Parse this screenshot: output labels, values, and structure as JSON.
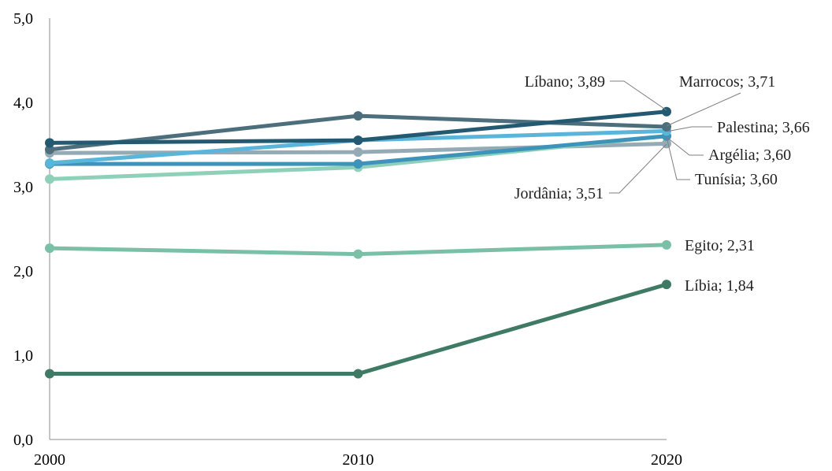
{
  "chart_data": {
    "type": "line",
    "x": [
      "2000",
      "2010",
      "2020"
    ],
    "y_ticks": [
      "0,0",
      "1,0",
      "2,0",
      "3,0",
      "4,0",
      "5,0"
    ],
    "ylim": [
      0,
      5
    ],
    "grid": false,
    "series": [
      {
        "key": "libia",
        "values": [
          0.78,
          0.78,
          1.84
        ],
        "color": "#3e7a64",
        "label": "Líbia; 1,84"
      },
      {
        "key": "egito",
        "values": [
          2.27,
          2.2,
          2.31
        ],
        "color": "#79c0a7",
        "label": "Egito; 2,31"
      },
      {
        "key": "jordania",
        "values": [
          3.4,
          3.41,
          3.51
        ],
        "color": "#94abb5",
        "label": "Jordânia; 3,51"
      },
      {
        "key": "tunisia",
        "values": [
          3.09,
          3.23,
          3.6
        ],
        "color": "#8fd1b8",
        "label": "Tunísia; 3,60"
      },
      {
        "key": "argelia",
        "values": [
          3.27,
          3.27,
          3.6
        ],
        "color": "#3d93ba",
        "label": "Argélia; 3,60"
      },
      {
        "key": "palestina",
        "values": [
          3.28,
          3.55,
          3.66
        ],
        "color": "#5ab5db",
        "label": "Palestina; 3,66"
      },
      {
        "key": "marrocos",
        "values": [
          3.44,
          3.84,
          3.71
        ],
        "color": "#4d6e7c",
        "label": "Marrocos; 3,71"
      },
      {
        "key": "libano",
        "values": [
          3.52,
          3.55,
          3.89
        ],
        "color": "#235a72",
        "label": "Líbano; 3,89"
      }
    ]
  }
}
